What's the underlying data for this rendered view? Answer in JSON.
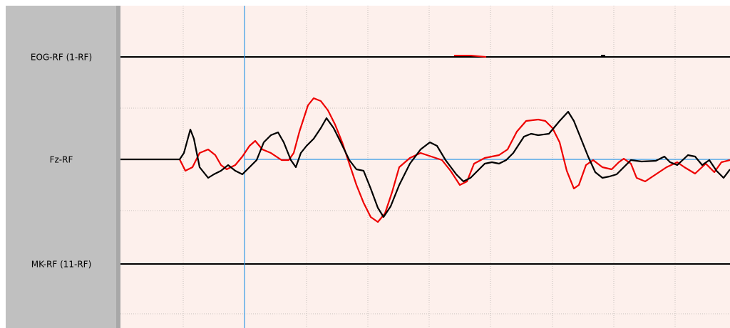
{
  "channels": [
    {
      "label": "EOG-RF (1-RF)"
    },
    {
      "label": "Fz-RF"
    },
    {
      "label": "MK-RF (11-RF)"
    }
  ]
}
